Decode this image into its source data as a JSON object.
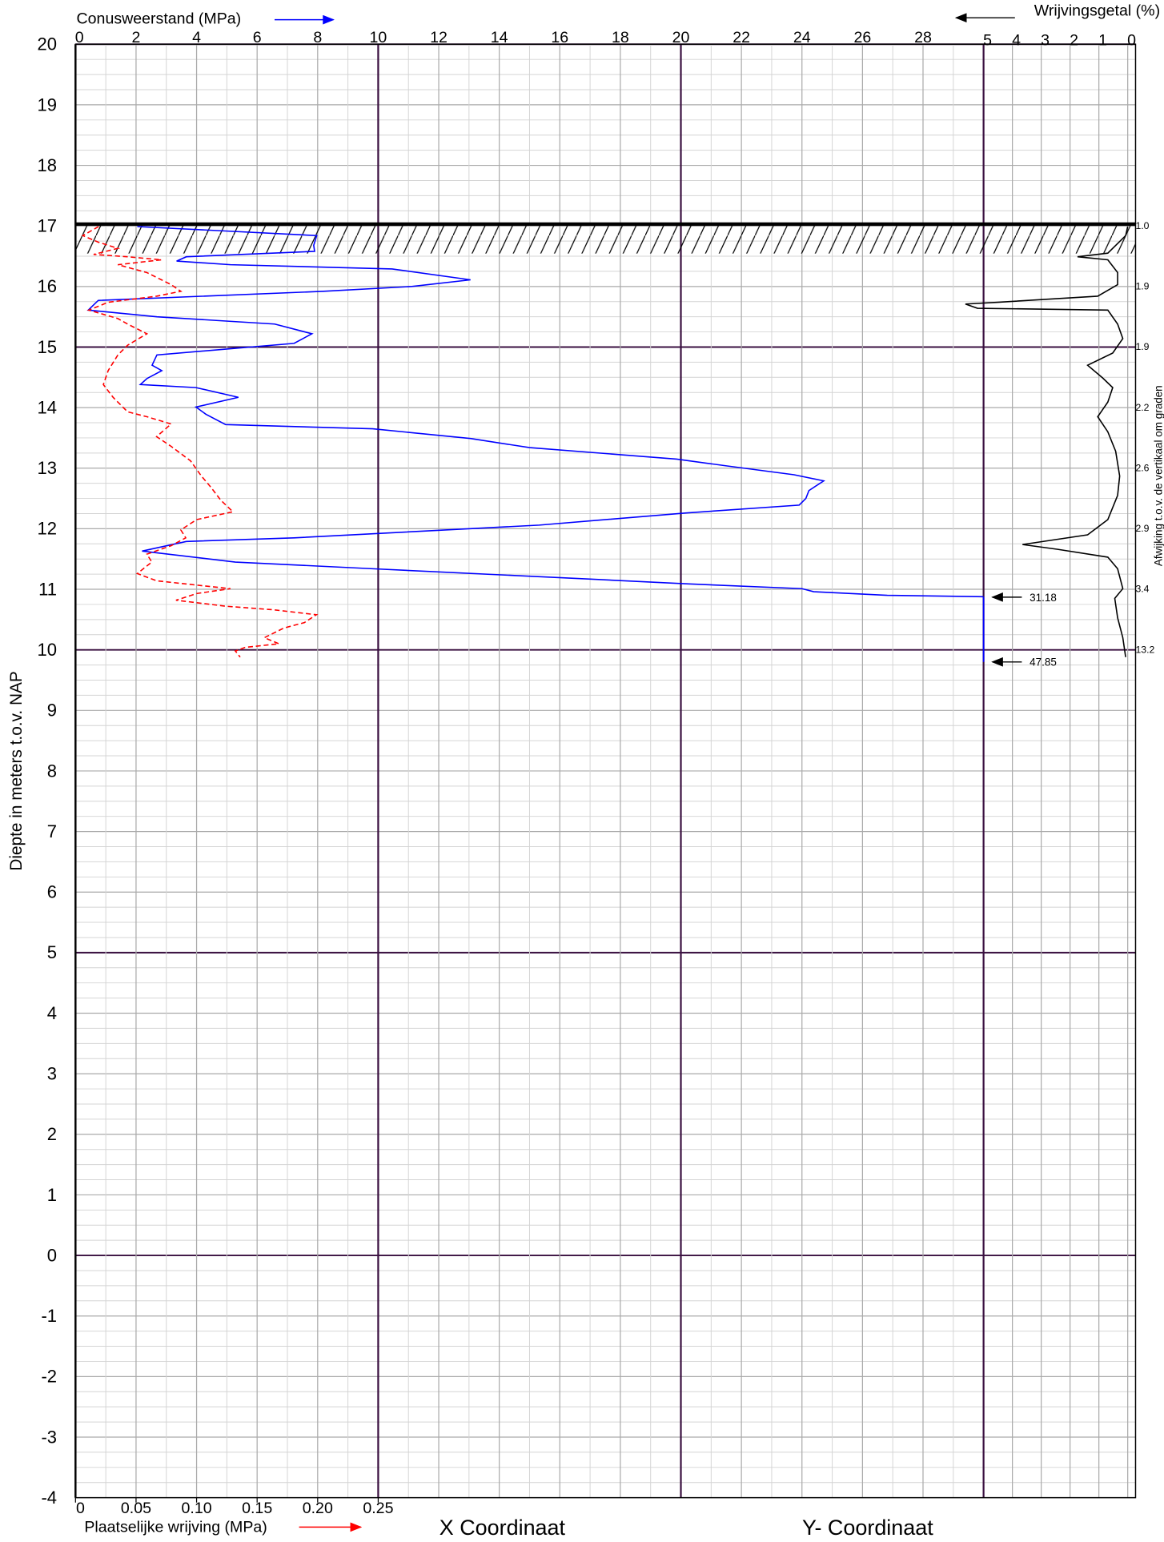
{
  "chart_data": {
    "type": "cpt",
    "ylabel": "Diepte in meters t.o.v. NAP",
    "ylim": [
      -4,
      20
    ],
    "yticks": [
      -4,
      -3,
      -2,
      -1,
      0,
      1,
      2,
      3,
      4,
      5,
      6,
      7,
      8,
      9,
      10,
      11,
      12,
      13,
      14,
      15,
      16,
      17,
      18,
      19,
      20
    ],
    "xlim": [
      0,
      30
    ],
    "xticks": [
      0,
      2,
      4,
      6,
      8,
      10,
      12,
      14,
      16,
      18,
      20,
      22,
      24,
      26,
      28
    ],
    "x2lim": [
      0,
      0.75
    ],
    "x2ticks": [
      0,
      0.05,
      {
        "value": 0.1,
        "label": "0.10"
      },
      0.15,
      {
        "value": 0.2,
        "label": "0.20"
      },
      0.25
    ],
    "x3lim": [
      5,
      0
    ],
    "x3ticks": [
      5,
      4,
      3,
      2,
      1,
      0
    ],
    "grid": true,
    "ground_level": 17.03,
    "x_coordinate_label": "X Coordinaat",
    "y_coordinate_label": "Y- Coordinaat",
    "series": [
      {
        "name": "Conusweerstand (MPa)",
        "color": "#0000ff",
        "axis": "x",
        "dashed": false,
        "depth": [
          16.99,
          16.84,
          16.68,
          16.58,
          16.49,
          16.42,
          16.36,
          16.29,
          16.11,
          16.0,
          15.92,
          15.77,
          15.61,
          15.5,
          15.38,
          15.22,
          15.06,
          14.87,
          14.7,
          14.61,
          14.48,
          14.38,
          14.33,
          14.17,
          14.01,
          13.89,
          13.72,
          13.65,
          13.49,
          13.34,
          13.15,
          13.04,
          12.89,
          12.79,
          12.63,
          12.5,
          12.39,
          12.26,
          12.06,
          11.85,
          11.79,
          11.63,
          11.45,
          11.34,
          11.17,
          11.09,
          11.01,
          10.96,
          10.9,
          10.87,
          9.8
        ],
        "values": [
          2.04,
          7.97,
          7.87,
          7.9,
          3.66,
          3.34,
          5.12,
          10.46,
          13.05,
          11.11,
          8.2,
          0.75,
          0.42,
          2.69,
          6.58,
          7.81,
          7.22,
          2.69,
          2.53,
          2.85,
          2.36,
          2.14,
          3.98,
          5.38,
          3.98,
          4.31,
          4.96,
          9.82,
          13.05,
          15.0,
          19.86,
          21.48,
          23.74,
          24.72,
          24.23,
          24.13,
          23.91,
          20.18,
          15.32,
          7.22,
          3.66,
          2.2,
          5.28,
          9.82,
          16.94,
          20.18,
          24.0,
          24.39,
          26.82,
          31.18,
          47.85
        ]
      },
      {
        "name": "Plaatselijke wrijving (MPa)",
        "color": "#ff0000",
        "axis": "x2",
        "dashed": true,
        "depth": [
          16.99,
          16.84,
          16.73,
          16.63,
          16.53,
          16.49,
          16.44,
          16.36,
          16.23,
          16.03,
          15.92,
          15.84,
          15.74,
          15.61,
          15.47,
          15.38,
          15.22,
          15.03,
          14.87,
          14.61,
          14.38,
          14.17,
          13.93,
          13.85,
          13.73,
          13.52,
          13.36,
          13.12,
          12.87,
          12.68,
          12.47,
          12.28,
          12.15,
          11.98,
          11.85,
          11.72,
          11.58,
          11.45,
          11.26,
          11.14,
          11.06,
          11.01,
          10.93,
          10.82,
          10.72,
          10.66,
          10.58,
          10.45,
          10.36,
          10.2,
          10.1,
          10.04,
          9.98,
          9.88
        ],
        "values": [
          0.019,
          0.006,
          0.019,
          0.035,
          0.015,
          0.043,
          0.071,
          0.035,
          0.059,
          0.079,
          0.087,
          0.067,
          0.027,
          0.011,
          0.035,
          0.043,
          0.059,
          0.043,
          0.035,
          0.027,
          0.023,
          0.031,
          0.043,
          0.059,
          0.079,
          0.067,
          0.079,
          0.095,
          0.104,
          0.112,
          0.12,
          0.13,
          0.1,
          0.087,
          0.091,
          0.079,
          0.059,
          0.063,
          0.051,
          0.067,
          0.104,
          0.128,
          0.1,
          0.083,
          0.124,
          0.164,
          0.199,
          0.189,
          0.172,
          0.156,
          0.168,
          0.14,
          0.132,
          0.136
        ]
      },
      {
        "name": "Wrijvingsgetal (%)",
        "color": "#000000",
        "axis": "x3",
        "dashed": false,
        "depth": [
          16.99,
          16.84,
          16.55,
          16.49,
          16.44,
          16.23,
          16.03,
          15.84,
          15.74,
          15.71,
          15.64,
          15.61,
          15.38,
          15.14,
          14.9,
          14.7,
          14.49,
          14.33,
          14.09,
          13.85,
          13.6,
          13.28,
          12.87,
          12.55,
          12.15,
          11.9,
          11.74,
          11.66,
          11.53,
          11.34,
          11.01,
          10.85,
          10.53,
          10.2,
          9.88
        ],
        "values": [
          0,
          0.07,
          0.69,
          1.74,
          0.69,
          0.35,
          0.35,
          1.04,
          4.51,
          5.63,
          5.21,
          0.69,
          0.35,
          0.17,
          0.52,
          1.39,
          0.87,
          0.52,
          0.69,
          1.04,
          0.69,
          0.42,
          0.28,
          0.35,
          0.69,
          1.39,
          3.65,
          2.43,
          0.69,
          0.35,
          0.17,
          0.45,
          0.35,
          0.17,
          0.07
        ]
      }
    ],
    "inclination": {
      "label": "Afwijking t.o.v. de vertikaal om graden",
      "depth": [
        17,
        16,
        15,
        14,
        13,
        12,
        11,
        10
      ],
      "values": [
        1.0,
        1.9,
        1.9,
        2.2,
        2.6,
        2.9,
        3.4,
        13.2
      ],
      "value_labels": [
        "1.0",
        "1.9",
        "1.9",
        "2.2",
        "2.6",
        "2.9",
        "3.4",
        "13.2"
      ]
    }
  }
}
